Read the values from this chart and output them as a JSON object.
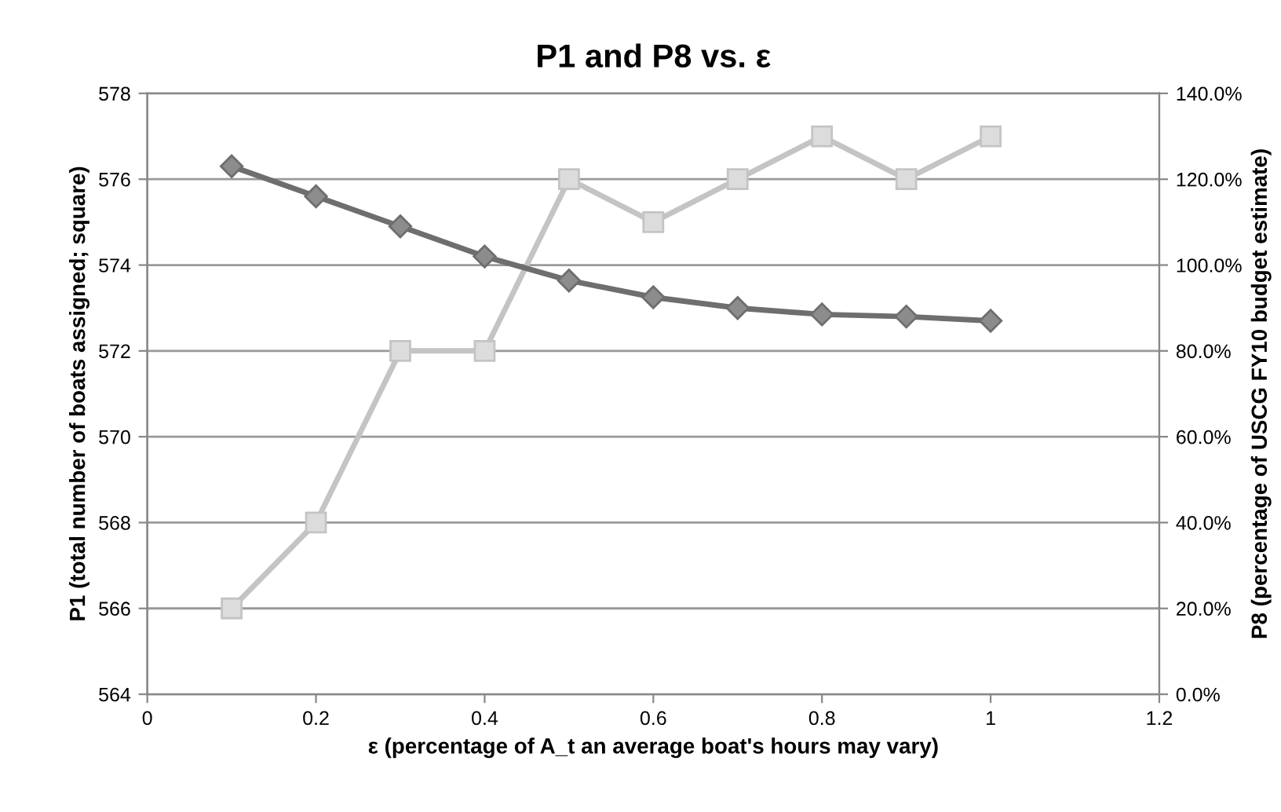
{
  "chart_data": {
    "type": "line",
    "title": "P1 and P8 vs. ε",
    "xlabel": "ε (percentage of A_t an average boat's hours may vary)",
    "ylabel": "P1 (total number of boats assigned; square)",
    "y2label": "P8 (percentage of USCG FY10 budget estimate)",
    "x": [
      0.1,
      0.2,
      0.3,
      0.4,
      0.5,
      0.6,
      0.7,
      0.8,
      0.9,
      1.0
    ],
    "series": [
      {
        "color": "#c4c4c4",
        "marker": "square",
        "values": [
          566,
          568,
          572,
          572,
          576,
          575,
          576,
          577,
          576,
          577
        ]
      },
      {
        "color": "#6e6e6e",
        "marker": "diamond",
        "axis": "y2",
        "values": [
          123,
          116,
          109,
          102,
          96.4,
          92.5,
          90,
          88.5,
          88,
          87
        ]
      }
    ],
    "xlim": [
      0,
      1.2
    ],
    "xticks": [
      0,
      0.2,
      0.4,
      0.6,
      0.8,
      1,
      1.2
    ],
    "ylim": [
      564,
      578
    ],
    "yticks": [
      564,
      566,
      568,
      570,
      572,
      574,
      576,
      578
    ],
    "y2lim": [
      0,
      140
    ],
    "y2ticks": [
      {
        "value": 0,
        "label": "0.0%"
      },
      {
        "value": 20,
        "label": "20.0%"
      },
      {
        "value": 40,
        "label": "40.0%"
      },
      {
        "value": 60,
        "label": "60.0%"
      },
      {
        "value": 80,
        "label": "80.0%"
      },
      {
        "value": 100,
        "label": "100.0%"
      },
      {
        "value": 120,
        "label": "120.0%"
      },
      {
        "value": 140,
        "label": "140.0%"
      }
    ],
    "grid": "y",
    "line_style": "solid"
  }
}
